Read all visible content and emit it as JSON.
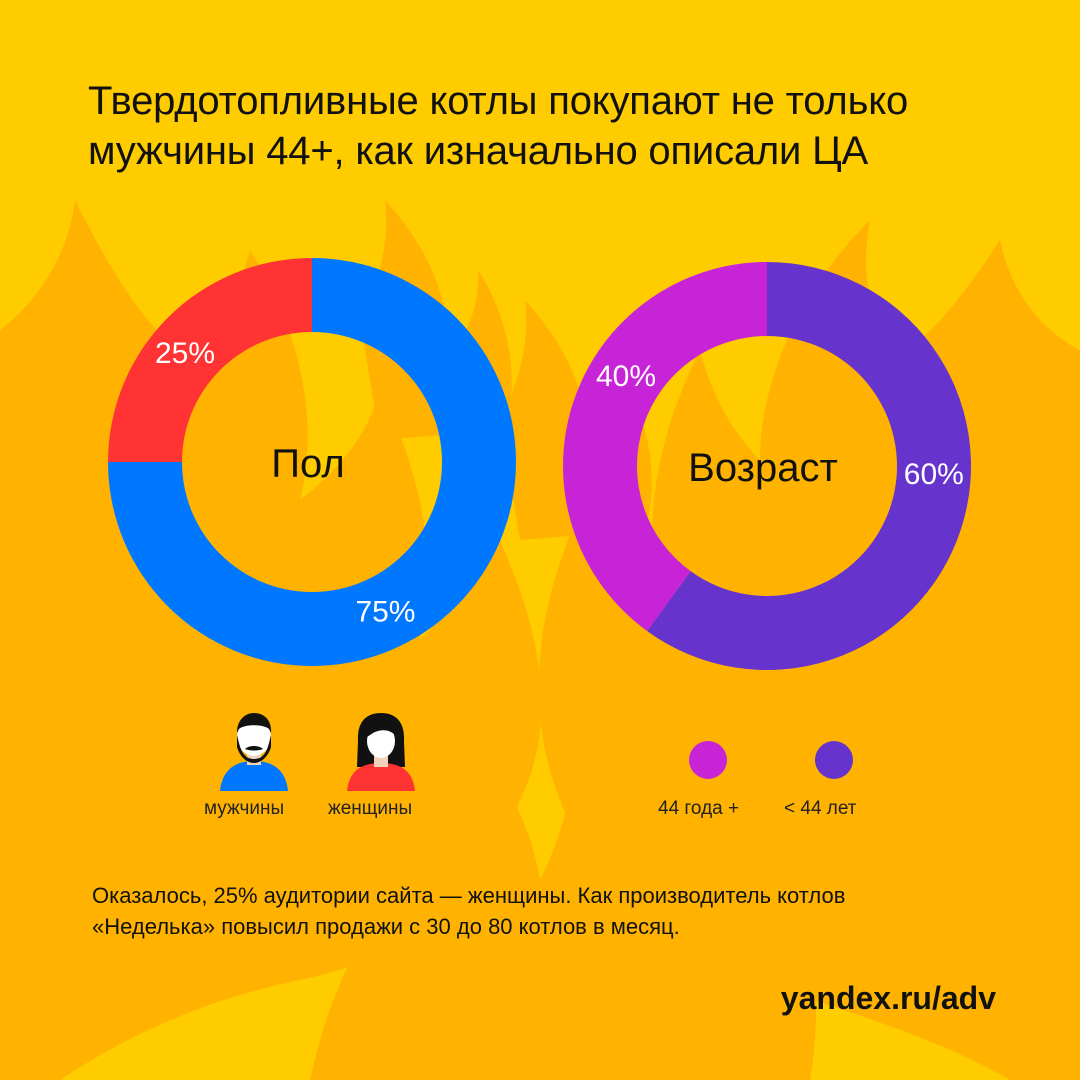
{
  "title": {
    "line1": "Твердотопливные котлы покупают не только",
    "line2": "мужчины 44+, как изначально описали ЦА"
  },
  "colors": {
    "background": "#FFCC00",
    "flame": "#FFB300",
    "men": "#0077FF",
    "women": "#FF3333",
    "age_44_plus": "#C724D8",
    "age_under_44": "#6633CC"
  },
  "chart_data": [
    {
      "type": "pie",
      "variant": "donut",
      "center_label": "Пол",
      "slices": [
        {
          "name": "мужчины",
          "value": 75,
          "label": "75%",
          "color": "#0077FF"
        },
        {
          "name": "женщины",
          "value": 25,
          "label": "25%",
          "color": "#FF3333"
        }
      ]
    },
    {
      "type": "pie",
      "variant": "donut",
      "center_label": "Возраст",
      "slices": [
        {
          "name": "< 44 лет",
          "value": 60,
          "label": "60%",
          "color": "#6633CC"
        },
        {
          "name": "44 года +",
          "value": 40,
          "label": "40%",
          "color": "#C724D8"
        }
      ]
    }
  ],
  "legend_gender": {
    "men_icon": "man-icon",
    "men_label": "мужчины",
    "women_icon": "woman-icon",
    "women_label": "женщины"
  },
  "legend_age": {
    "old_label": "44 года +",
    "young_label": "< 44 лет"
  },
  "footnote": {
    "line1": "Оказалось, 25% аудитории сайта — женщины. Как производитель котлов",
    "line2": "«Неделька» повысил продажи с 30 до 80 котлов в месяц."
  },
  "site": "yandex.ru/adv"
}
